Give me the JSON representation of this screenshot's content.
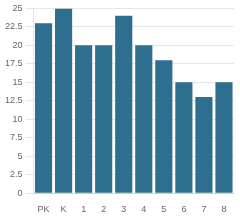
{
  "chart_data": {
    "type": "bar",
    "categories": [
      "PK",
      "K",
      "1",
      "2",
      "3",
      "4",
      "5",
      "6",
      "7",
      "8"
    ],
    "values": [
      23,
      25,
      20,
      20,
      24,
      20,
      18,
      15,
      13,
      15
    ],
    "color": "#2e6e8e",
    "ylim": [
      0,
      25
    ],
    "yticks": [
      0,
      2.5,
      5,
      7.5,
      10,
      12.5,
      15,
      17.5,
      20,
      22.5,
      25
    ],
    "grid": true
  }
}
